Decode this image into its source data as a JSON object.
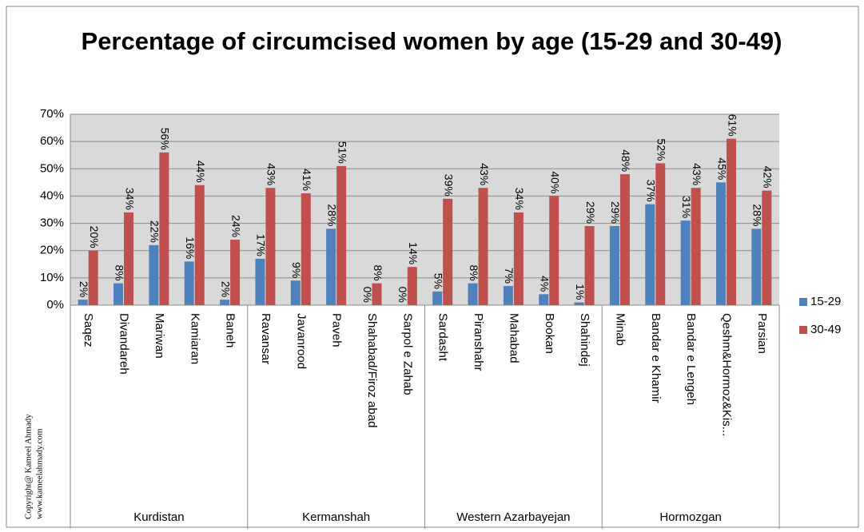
{
  "chart_data": {
    "type": "bar",
    "title": "Percentage of circumcised women by age (15-29 and 30-49)",
    "groups": [
      {
        "name": "Kurdistan",
        "categories": [
          "Saqez",
          "Divandareh",
          "Mariwan",
          "Kamiaran",
          "Baneh"
        ]
      },
      {
        "name": "Kermanshah",
        "categories": [
          "Ravansar",
          "Javanrood",
          "Paveh",
          "Shahabad/Firoz abad",
          "Sarpol e Zahab"
        ]
      },
      {
        "name": "Western Azarbayejan",
        "categories": [
          "Sardasht",
          "Piranshahr",
          "Mahabad",
          "Bookan",
          "Shahindej"
        ]
      },
      {
        "name": "Hormozgan",
        "categories": [
          "Minab",
          "Bandar e Khamir",
          "Bandar e Lengeh",
          "Qeshm&Hormoz&Kis...",
          "Parsian"
        ]
      }
    ],
    "series": [
      {
        "name": "15-29",
        "color": "#4f81bd",
        "values": [
          2,
          8,
          22,
          16,
          2,
          17,
          9,
          28,
          0,
          0,
          5,
          8,
          7,
          4,
          1,
          29,
          37,
          31,
          45,
          28
        ],
        "value_labels": [
          "2%",
          "8%",
          "22%",
          "16%",
          "2%",
          "17%",
          "9%",
          "28%",
          "0%",
          "0%",
          "5%",
          "8%",
          "7%",
          "4%",
          "1%",
          "29%",
          "37%",
          "31%",
          "45%",
          "28%"
        ]
      },
      {
        "name": "30-49",
        "color": "#c0504d",
        "values": [
          20,
          34,
          56,
          44,
          24,
          43,
          41,
          51,
          8,
          14,
          39,
          43,
          34,
          40,
          29,
          48,
          52,
          43,
          61,
          42
        ],
        "value_labels": [
          "20%",
          "34%",
          "56%",
          "44%",
          "24%",
          "43%",
          "41%",
          "51%",
          "8%",
          "14%",
          "39%",
          "43%",
          "34%",
          "40%",
          "29%",
          "48%",
          "52%",
          "43%",
          "61%",
          "42%"
        ]
      }
    ],
    "ylim": [
      0,
      70
    ],
    "yticks": [
      {
        "value": 0,
        "label": "0%"
      },
      {
        "value": 10,
        "label": "10%"
      },
      {
        "value": 20,
        "label": "20%"
      },
      {
        "value": 30,
        "label": "30%"
      },
      {
        "value": 40,
        "label": "40%"
      },
      {
        "value": 50,
        "label": "50%"
      },
      {
        "value": 60,
        "label": "60%"
      },
      {
        "value": 70,
        "label": "70%"
      }
    ],
    "grid": true,
    "legend": "right",
    "copyright": [
      "Copyright@ Kameel Ahmady",
      "www.kameelahmady.com"
    ]
  }
}
